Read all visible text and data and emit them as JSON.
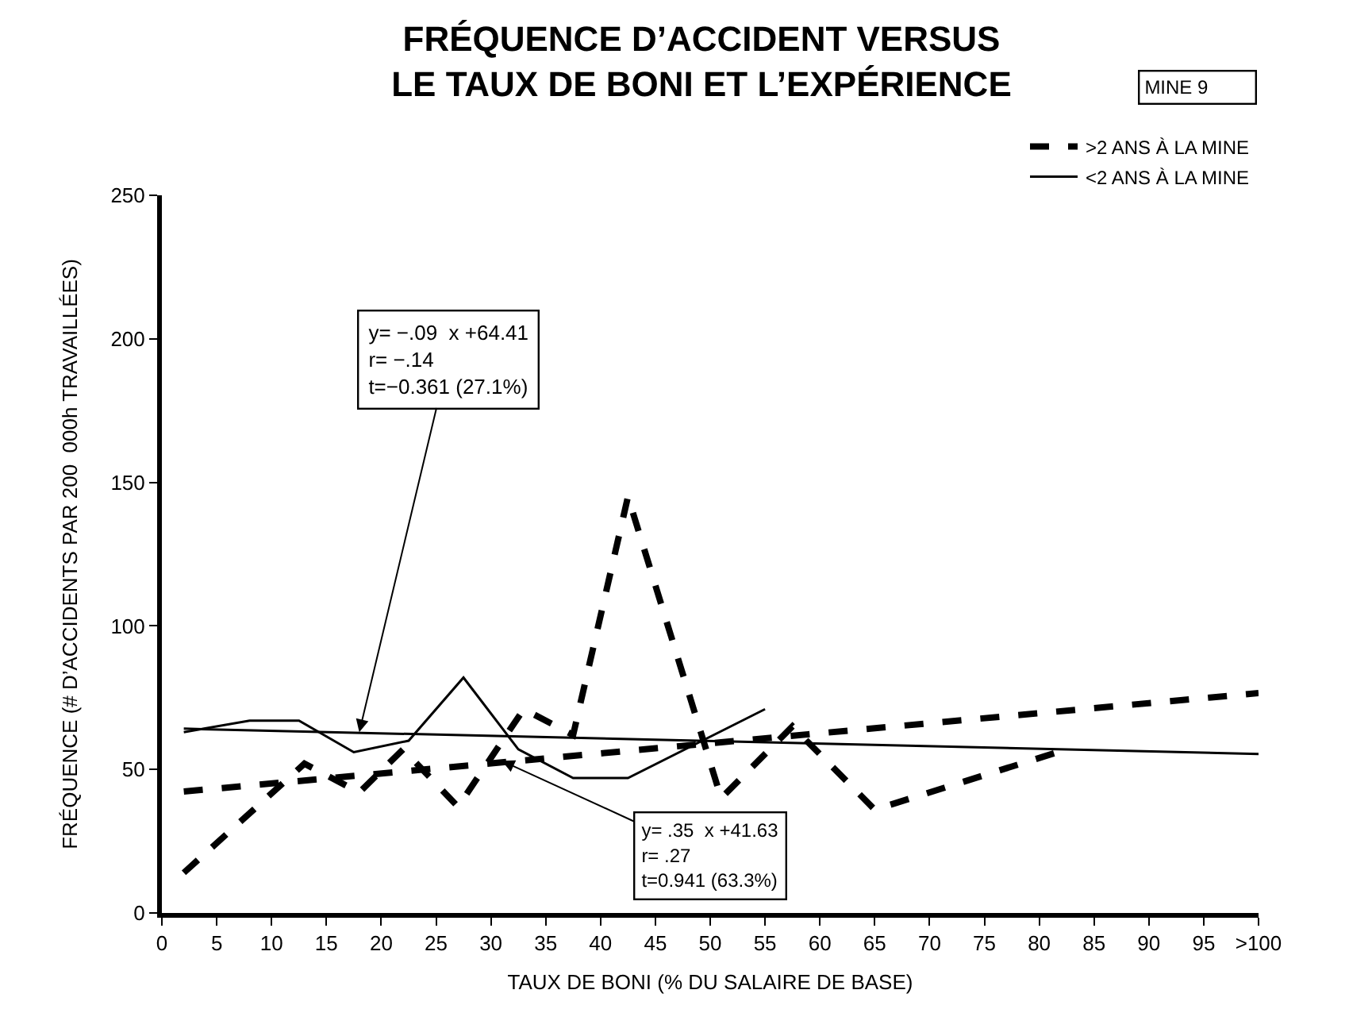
{
  "chart_data": {
    "type": "line",
    "title": "FRÉQUENCE D’ACCIDENT VERSUS\nLE TAUX DE BONI ET L’EXPÉRIENCE",
    "xlabel": "TAUX DE BONI (% DU SALAIRE DE BASE)",
    "ylabel": "FRÉQUENCE (# D’ACCIDENTS PAR 200  000h TRAVAILLÉES)",
    "xlim": [
      0,
      100
    ],
    "ylim": [
      0,
      250
    ],
    "xticks": [
      0,
      5,
      10,
      15,
      20,
      25,
      30,
      35,
      40,
      45,
      50,
      55,
      60,
      65,
      70,
      75,
      80,
      85,
      90,
      95,
      {
        "value": 100,
        "label": ">100"
      }
    ],
    "yticks": [
      0,
      50,
      100,
      150,
      200,
      250
    ],
    "grid": false,
    "legend": "top right",
    "marker": "none",
    "series": [
      {
        "name": ">2 ANS À LA MINE",
        "color": "#000000",
        "line_style": "dashed",
        "x": [
          2,
          13,
          18,
          22,
          27,
          33,
          37.5,
          42.5,
          51,
          57.5,
          65,
          82.5
        ],
        "values": [
          14,
          52,
          42,
          57,
          37,
          71,
          62,
          145,
          40,
          65,
          36,
          57
        ]
      },
      {
        "name": "<2 ANS À LA MINE",
        "color": "#000000",
        "line_style": "solid",
        "x": [
          2,
          8,
          12.5,
          17.5,
          22.5,
          27.5,
          32.5,
          37.5,
          42.5,
          55
        ],
        "values": [
          63,
          67,
          67,
          56,
          60,
          82,
          57,
          47,
          47,
          71
        ]
      },
      {
        "color": "#000000",
        "line_style": "solid",
        "x": [
          2,
          100
        ],
        "values": [
          64.2,
          55.4
        ]
      },
      {
        "color": "#000000",
        "line_style": "dashed",
        "x": [
          2,
          100
        ],
        "values": [
          42.3,
          76.6
        ]
      }
    ],
    "annotations": [
      {
        "text": "y= −.09  x +64.41\nr= −.14\nt=−0.361 (27.1%)",
        "x": 18,
        "y": 63
      },
      {
        "text": "y= .35  x +41.63\nr= .27\nt=0.941 (63.3%)",
        "x": 31,
        "y": 53
      },
      "MINE 9"
    ]
  }
}
